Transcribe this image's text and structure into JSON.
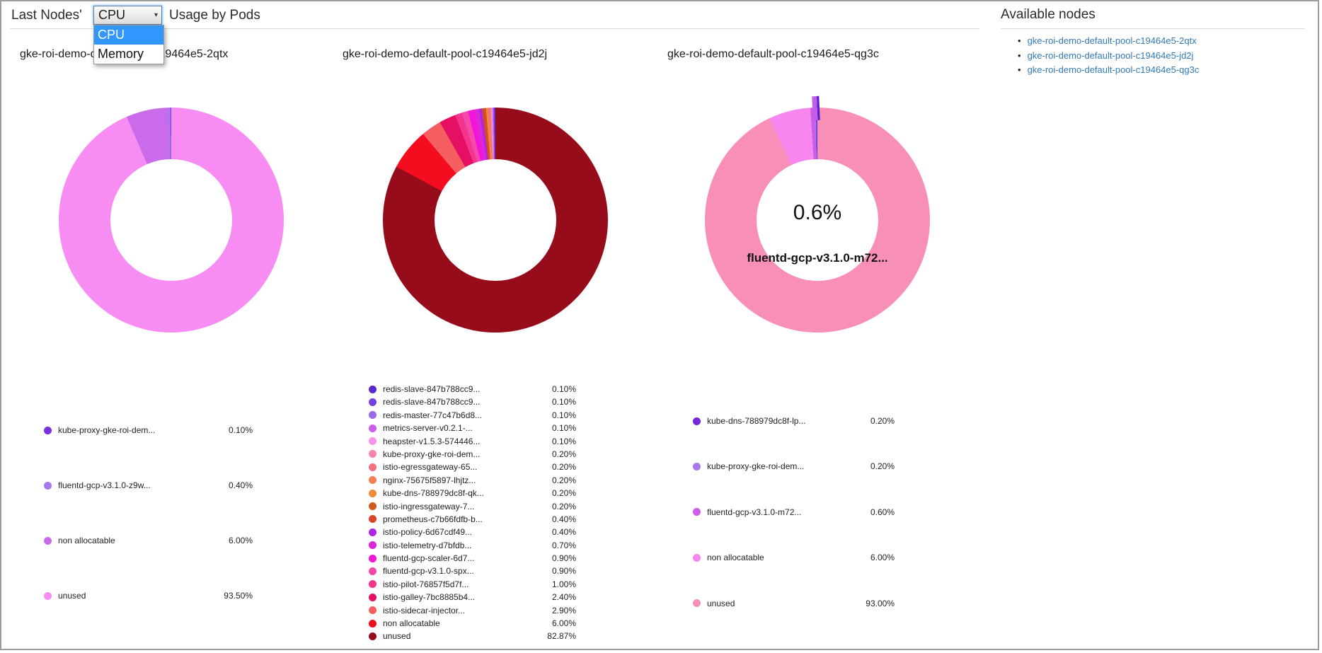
{
  "header": {
    "title_prefix": "Last Nodes'",
    "title_suffix": "Usage by Pods",
    "metric_select": {
      "value": "CPU",
      "options": [
        "CPU",
        "Memory"
      ],
      "selected_option": "CPU"
    }
  },
  "available_nodes": {
    "title": "Available nodes",
    "nodes": [
      "gke-roi-demo-default-pool-c19464e5-2qtx",
      "gke-roi-demo-default-pool-c19464e5-jd2j",
      "gke-roi-demo-default-pool-c19464e5-qg3c"
    ],
    "link_color": "#337ab7"
  },
  "chart_data": [
    {
      "type": "pie",
      "donut": true,
      "title": "gke-roi-demo-default-pool-c19464e5-2qtx",
      "unit": "%",
      "legend_position": "bottom",
      "slices": [
        {
          "label": "kube-proxy-gke-roi-dem...",
          "value": 0.1,
          "display": "0.10%",
          "color": "#7b2fe0"
        },
        {
          "label": "fluentd-gcp-v3.1.0-z9w...",
          "value": 0.4,
          "display": "0.40%",
          "color": "#a878f1"
        },
        {
          "label": "non allocatable",
          "value": 6.0,
          "display": "6.00%",
          "color": "#ca6ce9"
        },
        {
          "label": "unused",
          "value": 93.5,
          "display": "93.50%",
          "color": "#f78df2"
        }
      ]
    },
    {
      "type": "pie",
      "donut": true,
      "title": "gke-roi-demo-default-pool-c19464e5-jd2j",
      "unit": "%",
      "legend_position": "bottom",
      "slices": [
        {
          "label": "redis-slave-847b788cc9...",
          "value": 0.1,
          "display": "0.10%",
          "color": "#5a2bc9"
        },
        {
          "label": "redis-slave-847b788cc9...",
          "value": 0.1,
          "display": "0.10%",
          "color": "#7440dd"
        },
        {
          "label": "redis-master-77c47b6d8...",
          "value": 0.1,
          "display": "0.10%",
          "color": "#9b69e8"
        },
        {
          "label": "metrics-server-v0.2.1-...",
          "value": 0.1,
          "display": "0.10%",
          "color": "#c95fea"
        },
        {
          "label": "heapster-v1.5.3-574446...",
          "value": 0.1,
          "display": "0.10%",
          "color": "#f795ea"
        },
        {
          "label": "kube-proxy-gke-roi-dem...",
          "value": 0.2,
          "display": "0.20%",
          "color": "#f983b0"
        },
        {
          "label": "istio-egressgateway-65...",
          "value": 0.2,
          "display": "0.20%",
          "color": "#f2727e"
        },
        {
          "label": "nginx-75675f5897-lhjtz...",
          "value": 0.2,
          "display": "0.20%",
          "color": "#f97d54"
        },
        {
          "label": "kube-dns-788979dc8f-qk...",
          "value": 0.2,
          "display": "0.20%",
          "color": "#ef8b3a"
        },
        {
          "label": "istio-ingressgateway-7...",
          "value": 0.2,
          "display": "0.20%",
          "color": "#cf5a1f"
        },
        {
          "label": "prometheus-c7b66fdfb-b...",
          "value": 0.4,
          "display": "0.40%",
          "color": "#d8462b"
        },
        {
          "label": "istio-policy-6d67cdf49...",
          "value": 0.4,
          "display": "0.40%",
          "color": "#ab27e0"
        },
        {
          "label": "istio-telemetry-d7bfdb...",
          "value": 0.7,
          "display": "0.70%",
          "color": "#dc26dc"
        },
        {
          "label": "fluentd-gcp-scaler-6d7...",
          "value": 0.9,
          "display": "0.90%",
          "color": "#f316d9"
        },
        {
          "label": "fluentd-gcp-v3.1.0-spx...",
          "value": 0.9,
          "display": "0.90%",
          "color": "#f448ab"
        },
        {
          "label": "istio-pilot-76857f5d7f...",
          "value": 1.0,
          "display": "1.00%",
          "color": "#f4348d"
        },
        {
          "label": "istio-galley-7bc8885b4...",
          "value": 2.4,
          "display": "2.40%",
          "color": "#e51063"
        },
        {
          "label": "istio-sidecar-injector...",
          "value": 2.9,
          "display": "2.90%",
          "color": "#f55f62"
        },
        {
          "label": "non allocatable",
          "value": 6.0,
          "display": "6.00%",
          "color": "#f30d1f"
        },
        {
          "label": "unused",
          "value": 82.87,
          "display": "82.87%",
          "color": "#970c1b"
        }
      ]
    },
    {
      "type": "pie",
      "donut": true,
      "title": "gke-roi-demo-default-pool-c19464e5-qg3c",
      "unit": "%",
      "legend_position": "bottom",
      "hovered": {
        "pct_label": "0.6%",
        "name": "fluentd-gcp-v3.1.0-m72...",
        "color": "#c05ee8",
        "edge_color": "#5a21c9"
      },
      "slices": [
        {
          "label": "kube-dns-788979dc8f-lp...",
          "value": 0.2,
          "display": "0.20%",
          "color": "#7329d9"
        },
        {
          "label": "kube-proxy-gke-roi-dem...",
          "value": 0.2,
          "display": "0.20%",
          "color": "#a678ec"
        },
        {
          "label": "fluentd-gcp-v3.1.0-m72...",
          "value": 0.6,
          "display": "0.60%",
          "color": "#cd5de8"
        },
        {
          "label": "non allocatable",
          "value": 6.0,
          "display": "6.00%",
          "color": "#f787ee"
        },
        {
          "label": "unused",
          "value": 93.0,
          "display": "93.00%",
          "color": "#f78fb8"
        }
      ]
    }
  ]
}
